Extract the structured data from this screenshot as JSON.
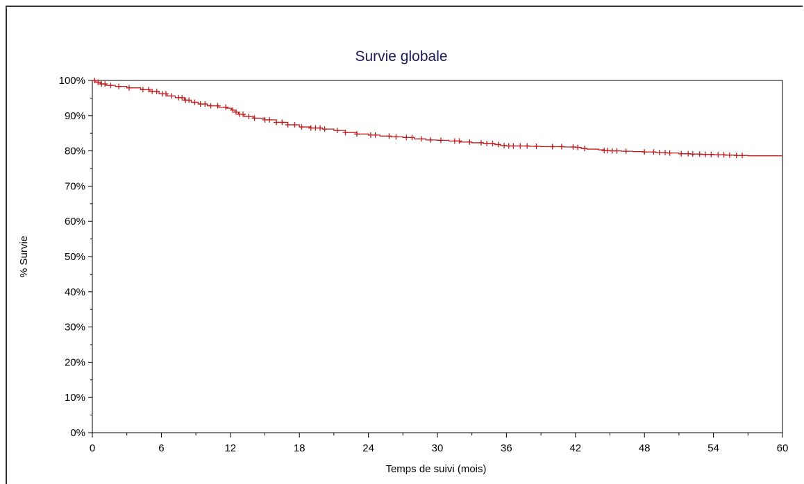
{
  "chart_data": {
    "type": "line",
    "title": "Survie globale",
    "xlabel": "Temps de suivi (mois)",
    "ylabel": "% Survie",
    "xlim": [
      0,
      60
    ],
    "ylim": [
      0,
      100
    ],
    "x_ticks": [
      "0",
      "6",
      "12",
      "18",
      "24",
      "30",
      "36",
      "42",
      "48",
      "54",
      "60"
    ],
    "y_ticks": [
      "0%",
      "10%",
      "20%",
      "30%",
      "40%",
      "50%",
      "60%",
      "70%",
      "80%",
      "90%",
      "100%"
    ],
    "grid": false,
    "series": [
      {
        "x": [
          0,
          0.3,
          0.7,
          1.2,
          2,
          3,
          4.2,
          5,
          5.8,
          6.5,
          7.2,
          8,
          8.6,
          9.2,
          10,
          11,
          11.7,
          12.1,
          12.4,
          12.7,
          13.2,
          14,
          15,
          16,
          17,
          18,
          19,
          20,
          21,
          22,
          23,
          24,
          25,
          26,
          27,
          28,
          29,
          30,
          31,
          32,
          33,
          34,
          35,
          35.5,
          36,
          37,
          38,
          39,
          40,
          41,
          42,
          42.5,
          43,
          44,
          44.5,
          45,
          46,
          47,
          48,
          49,
          50,
          51,
          52,
          53,
          54,
          55,
          56,
          57,
          58,
          59,
          60
        ],
        "y": [
          100,
          99.5,
          99,
          98.6,
          98.3,
          97.9,
          97.4,
          96.9,
          96.2,
          95.6,
          95.1,
          94.4,
          93.8,
          93.3,
          92.8,
          92.4,
          92.1,
          91.6,
          91,
          90.4,
          89.8,
          89.3,
          88.8,
          88.1,
          87.4,
          86.8,
          86.5,
          86.2,
          85.8,
          85.2,
          84.8,
          84.5,
          84.2,
          84,
          83.8,
          83.4,
          83.1,
          83,
          82.8,
          82.5,
          82.3,
          82.1,
          81.8,
          81.5,
          81.4,
          81.4,
          81.3,
          81.2,
          81.2,
          81.1,
          81,
          80.7,
          80.5,
          80.3,
          80.1,
          80,
          79.9,
          79.8,
          79.7,
          79.5,
          79.4,
          79.2,
          79.1,
          79,
          78.9,
          78.8,
          78.7,
          78.6,
          78.6,
          78.6,
          78.6
        ]
      }
    ],
    "censored_times": [
      0.2,
      0.5,
      0.8,
      1.1,
      1.6,
      2.3,
      3.2,
      4.4,
      4.9,
      5.2,
      5.6,
      6.1,
      6.4,
      6.9,
      7.5,
      7.8,
      8.1,
      8.4,
      8.9,
      9.4,
      9.8,
      10.3,
      10.9,
      11.6,
      12.2,
      12.5,
      12.8,
      13.1,
      13.6,
      14.1,
      15.0,
      15.4,
      16.0,
      16.5,
      17.0,
      17.6,
      18.2,
      19.0,
      19.4,
      19.8,
      20.2,
      21.3,
      22.0,
      23.0,
      24.2,
      24.6,
      25.8,
      26.4,
      27.3,
      27.8,
      28.6,
      29.4,
      30.3,
      31.5,
      31.9,
      32.8,
      33.8,
      34.3,
      34.8,
      35.3,
      35.8,
      36.2,
      36.6,
      37.2,
      37.8,
      38.6,
      40.0,
      40.8,
      41.8,
      42.2,
      42.8,
      44.5,
      44.8,
      45.2,
      45.6,
      46.4,
      48.0,
      48.8,
      49.3,
      49.8,
      50.2,
      51.2,
      51.8,
      52.2,
      52.8,
      53.3,
      53.8,
      54.4,
      54.9,
      55.4,
      56.0,
      56.5
    ]
  }
}
